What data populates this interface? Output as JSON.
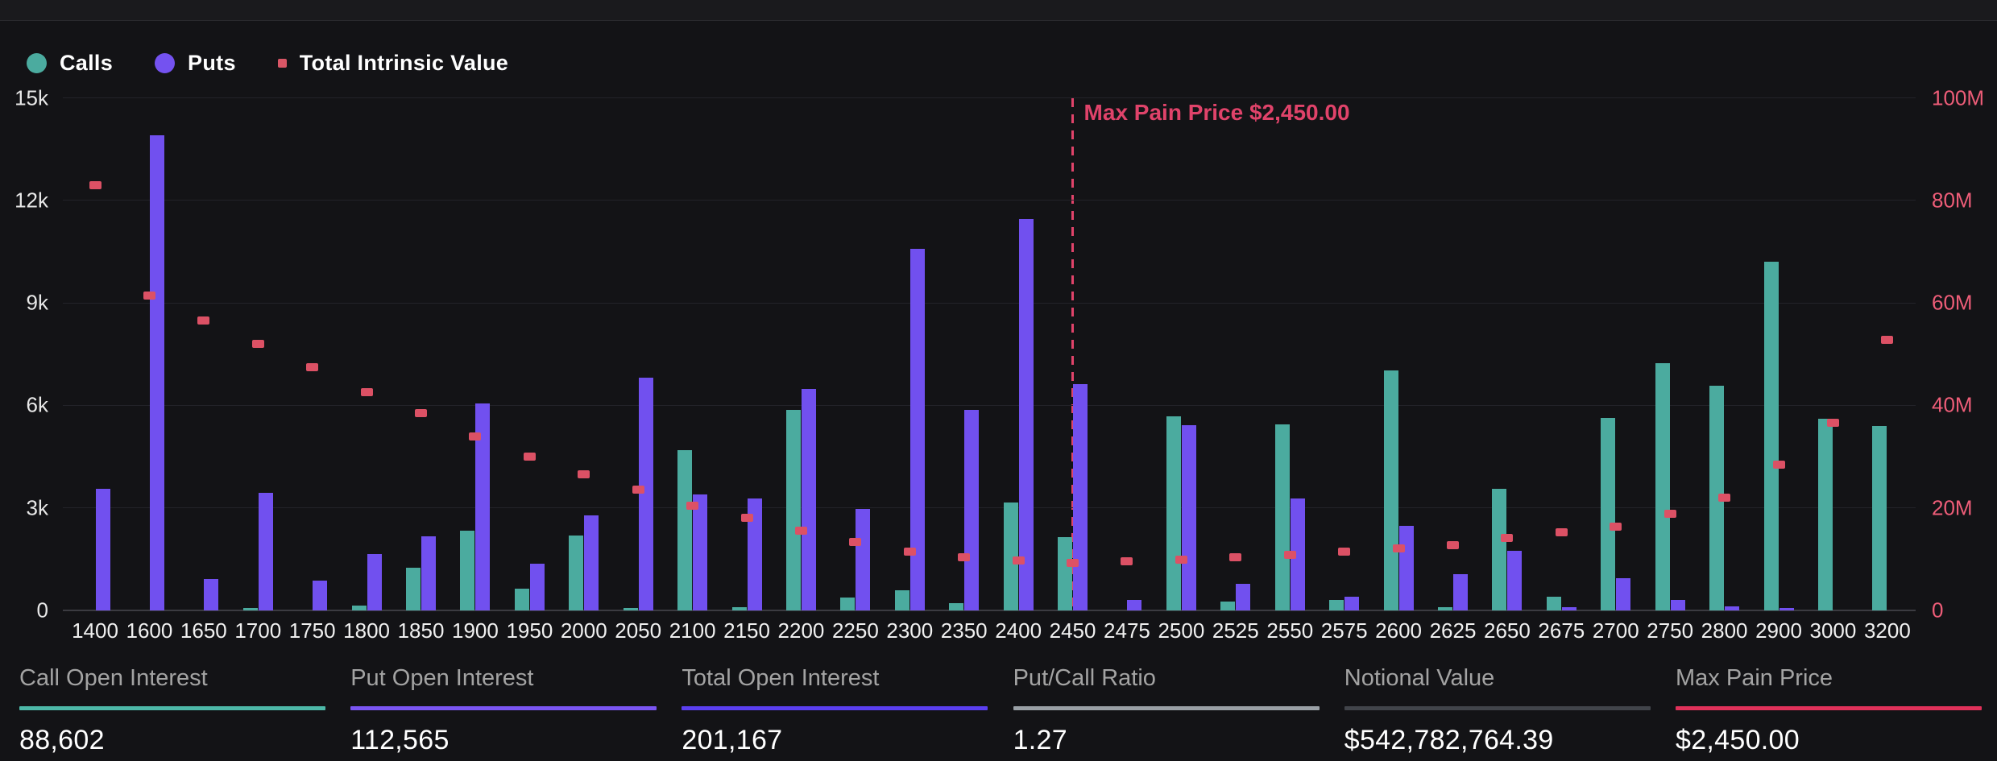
{
  "legend": [
    {
      "label": "Calls",
      "color": "#4bab9f",
      "marker": "circle"
    },
    {
      "label": "Puts",
      "color": "#7452f0",
      "marker": "circle"
    },
    {
      "label": "Total Intrinsic Value",
      "color": "#d95666",
      "marker": "square"
    }
  ],
  "chart_data": {
    "type": "bar",
    "subtype": "grouped-bars-with-scatter-overlay",
    "categories": [
      "1400",
      "1600",
      "1650",
      "1700",
      "1750",
      "1800",
      "1850",
      "1900",
      "1950",
      "2000",
      "2050",
      "2100",
      "2150",
      "2200",
      "2250",
      "2300",
      "2350",
      "2400",
      "2450",
      "2475",
      "2500",
      "2525",
      "2550",
      "2575",
      "2600",
      "2625",
      "2650",
      "2675",
      "2700",
      "2750",
      "2800",
      "2900",
      "3000",
      "3200"
    ],
    "series": [
      {
        "name": "Calls",
        "type": "bar",
        "axis": "left",
        "color": "#4bab9f",
        "values": [
          0,
          0,
          0,
          80,
          0,
          140,
          1240,
          2330,
          640,
          2190,
          80,
          4700,
          100,
          5870,
          380,
          590,
          210,
          3170,
          2140,
          0,
          5680,
          270,
          5440,
          300,
          7030,
          100,
          3550,
          410,
          5640,
          7230,
          6570,
          10200,
          5600,
          5400
        ]
      },
      {
        "name": "Puts",
        "type": "bar",
        "axis": "left",
        "color": "#7150ef",
        "values": [
          3570,
          13900,
          920,
          3450,
          880,
          1660,
          2170,
          6050,
          1370,
          2790,
          6800,
          3400,
          3280,
          6480,
          2980,
          10580,
          5870,
          11460,
          6620,
          300,
          5420,
          780,
          3270,
          390,
          2470,
          1070,
          1750,
          100,
          940,
          300,
          110,
          80,
          0,
          0
        ]
      },
      {
        "name": "Total Intrinsic Value",
        "type": "scatter",
        "axis": "right",
        "color": "#dc5165",
        "values_millions": [
          83,
          61.5,
          56.5,
          52,
          47.5,
          42.6,
          38.5,
          34,
          30,
          26.5,
          23.5,
          20.5,
          18,
          15.5,
          13.3,
          11.5,
          10.4,
          9.8,
          9.3,
          9.6,
          9.9,
          10.4,
          10.9,
          11.5,
          12.1,
          12.8,
          14.1,
          15.2,
          16.4,
          18.8,
          22,
          28.5,
          36.6,
          52.8
        ]
      }
    ],
    "left_axis": {
      "tick_labels": [
        "15k",
        "12k",
        "9k",
        "6k",
        "3k",
        "0"
      ],
      "min": 0,
      "max": 15000
    },
    "right_axis": {
      "tick_labels": [
        "100M",
        "80M",
        "60M",
        "40M",
        "20M",
        "0"
      ],
      "min": 0,
      "max": 100000000
    },
    "grid": "horizontal-only",
    "legend_position": "top-left",
    "annotation": {
      "text": "Max Pain Price $2,450.00",
      "category": "2450",
      "line_style": "dashed",
      "color": "#e0436a"
    }
  },
  "stats": [
    {
      "label": "Call Open Interest",
      "value": "88,602",
      "accent": "#4db8a8"
    },
    {
      "label": "Put Open Interest",
      "value": "112,565",
      "accent": "#7a55f2"
    },
    {
      "label": "Total Open Interest",
      "value": "201,167",
      "accent": "#5b3ff0"
    },
    {
      "label": "Put/Call Ratio",
      "value": "1.27",
      "accent": "#9aa0a6"
    },
    {
      "label": "Notional Value",
      "value": "$542,782,764.39",
      "accent": "#41444a"
    },
    {
      "label": "Max Pain Price",
      "value": "$2,450.00",
      "accent": "#e0315a"
    }
  ]
}
